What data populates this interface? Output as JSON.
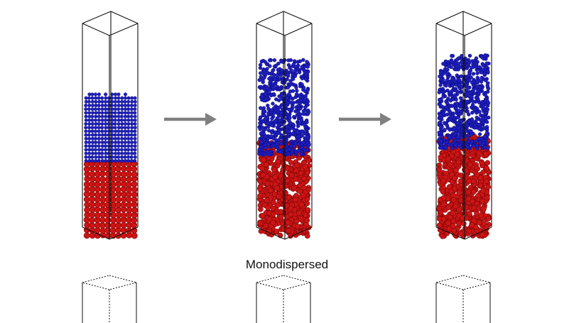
{
  "caption": "Monodispersed",
  "colors": {
    "fine_particles": "#1f1fbf",
    "coarse_particles": "#cc1414",
    "arrow": "#808080",
    "box_edge": "#111111",
    "hidden_edge": "#666666"
  },
  "panels": [
    {
      "stage": "initial",
      "red_fill_fraction": 0.37,
      "blue_fill_fraction": 0.65,
      "ordered": true
    },
    {
      "stage": "mixing",
      "red_fill_fraction": 0.45,
      "blue_fill_fraction": 0.8,
      "ordered": false
    },
    {
      "stage": "segregated",
      "red_fill_fraction": 0.48,
      "blue_fill_fraction": 0.82,
      "ordered": false
    }
  ],
  "arrows": [
    {
      "from": "initial",
      "to": "mixing"
    },
    {
      "from": "mixing",
      "to": "segregated"
    }
  ]
}
